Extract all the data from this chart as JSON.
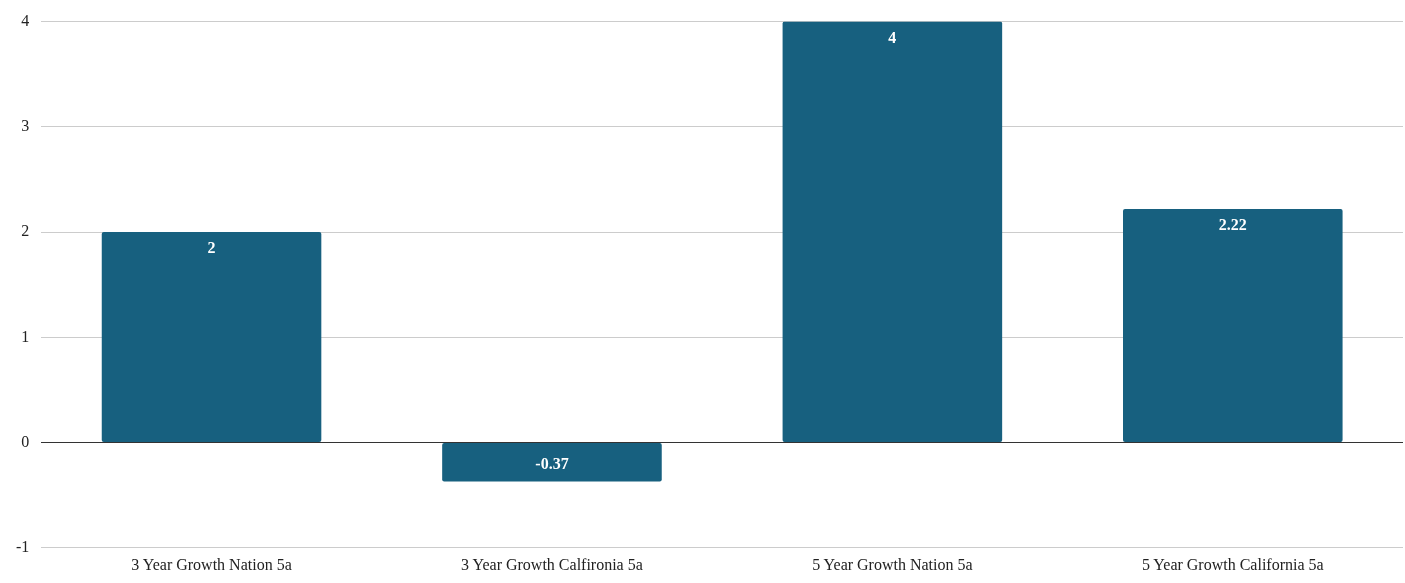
{
  "chart_data": {
    "type": "bar",
    "categories": [
      "3 Year Growth Nation 5a",
      "3 Year Growth Calfironia 5a",
      "5 Year Growth Nation 5a",
      "5 Year Growth California 5a"
    ],
    "values": [
      2,
      -0.37,
      4,
      2.22
    ],
    "color": "#17607f",
    "ylim": [
      -1,
      4
    ],
    "yticks": [
      -1,
      0,
      1,
      2,
      3,
      4
    ],
    "grid": "y",
    "legend": false,
    "data_labels": true
  }
}
